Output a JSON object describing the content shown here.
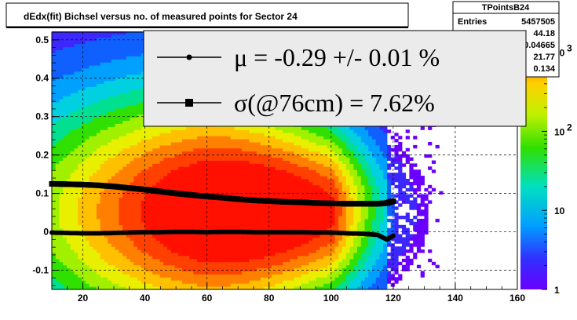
{
  "chart_data": {
    "type": "heatmap",
    "title": "dEdx(fit) Bichsel versus no. of measured points for Sector 24",
    "xlim": [
      10,
      160
    ],
    "ylim": [
      -0.15,
      0.52
    ],
    "x_ticks": [
      "20",
      "40",
      "60",
      "80",
      "100",
      "120",
      "140",
      "160"
    ],
    "x_tick_values": [
      20,
      40,
      60,
      80,
      100,
      120,
      140,
      160
    ],
    "y_ticks": [
      "-0.1",
      "0",
      "0.1",
      "0.2",
      "0.3",
      "0.4",
      "0.5"
    ],
    "y_tick_values": [
      -0.1,
      0,
      0.1,
      0.2,
      0.3,
      0.4,
      0.5
    ],
    "grid": true,
    "colorbar": {
      "scale": "log",
      "ticks": [
        "1",
        "10",
        "10",
        "10"
      ],
      "tick_exponents": [
        "",
        "",
        "2",
        "3"
      ],
      "tick_values": [
        1,
        10,
        100,
        1000
      ]
    },
    "stats": {
      "name": "TPointsB24",
      "rows": [
        {
          "label": "Entries",
          "value": "5457505"
        },
        {
          "label": "Mean",
          "value": "44.18"
        },
        {
          "label": "Mean y",
          "value": "0.04665"
        },
        {
          "label": "RMS",
          "value": "21.77"
        },
        {
          "label": "RMS y",
          "value": "0.134"
        }
      ]
    },
    "legend": [
      {
        "marker": "circle",
        "text": "μ  = -0.29 +/-  0.01 %"
      },
      {
        "marker": "square",
        "text": "σ(@76cm) =  7.62%"
      }
    ],
    "series": [
      {
        "marker": "circle",
        "x": [
          10,
          15,
          20,
          25,
          30,
          35,
          40,
          45,
          50,
          55,
          60,
          65,
          70,
          75,
          80,
          85,
          90,
          95,
          100,
          105,
          110,
          115,
          118,
          120
        ],
        "y": [
          -0.002,
          -0.003,
          -0.004,
          -0.004,
          -0.003,
          -0.002,
          -0.001,
          -0.001,
          0.0,
          0.0,
          -0.001,
          0.0,
          0.0,
          -0.001,
          -0.001,
          -0.001,
          -0.001,
          -0.002,
          -0.002,
          -0.004,
          -0.005,
          -0.008,
          -0.02,
          -0.01
        ]
      },
      {
        "marker": "square",
        "x": [
          10,
          15,
          20,
          25,
          30,
          35,
          40,
          45,
          50,
          55,
          60,
          65,
          70,
          75,
          80,
          85,
          90,
          95,
          100,
          105,
          110,
          115,
          118,
          120
        ],
        "y": [
          0.125,
          0.124,
          0.123,
          0.121,
          0.118,
          0.114,
          0.11,
          0.105,
          0.1,
          0.096,
          0.092,
          0.089,
          0.085,
          0.082,
          0.08,
          0.078,
          0.077,
          0.075,
          0.074,
          0.073,
          0.073,
          0.073,
          0.075,
          0.08
        ]
      }
    ]
  }
}
